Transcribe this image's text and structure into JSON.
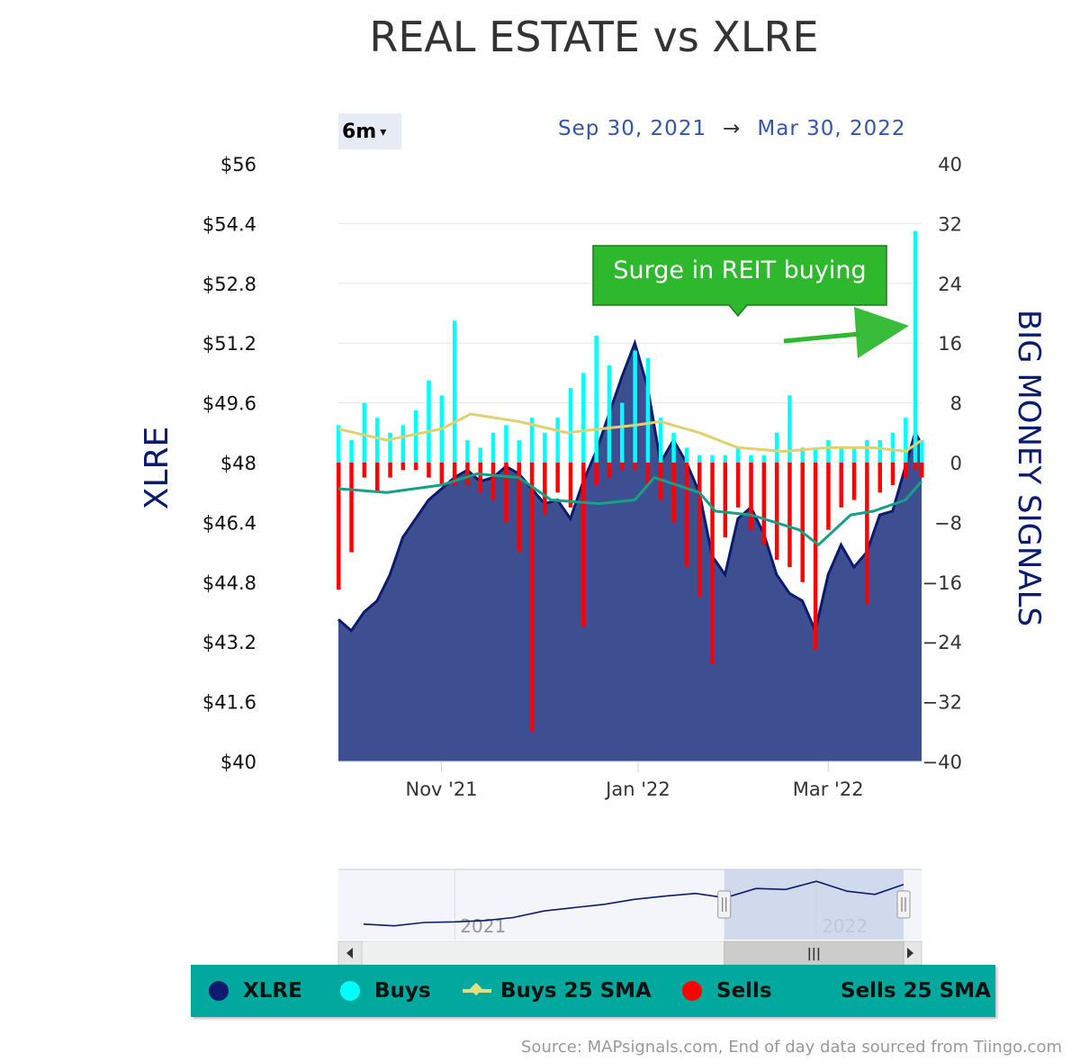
{
  "title": "REAL ESTATE vs XLRE",
  "range_selector": {
    "label": "6m",
    "caret": "▾"
  },
  "date_range": {
    "from": "Sep 30, 2021",
    "arrow": "→",
    "to": "Mar 30, 2022"
  },
  "annotation": {
    "text": "Surge in REIT buying"
  },
  "legend": {
    "items": [
      {
        "label": "XLRE",
        "color": "#0d1b6e"
      },
      {
        "label": "Buys",
        "color": "#00ffff"
      },
      {
        "label": "Buys 25 SMA",
        "color": "#e0e080"
      },
      {
        "label": "Sells",
        "color": "#ff0000"
      },
      {
        "label": "Sells 25 SMA",
        "color": "#16a085"
      }
    ]
  },
  "source": "Source: MAPsignals.com, End of day data sourced from Tiingo.com",
  "navigator": {
    "labels": [
      "2021",
      "2022"
    ],
    "handle_glyph": "|||"
  },
  "colors": {
    "xlre_fill": "#3e4f91",
    "xlre_line": "#0d1b6e",
    "buys": "#00ffff",
    "sells": "#ff0000",
    "buys_sma": "#e0d070",
    "sells_sma": "#16a085",
    "navigator_line": "#0d1b6e",
    "navigator_mask": "#c8d2e8"
  },
  "chart_data": {
    "type": "bar+area",
    "title": "REAL ESTATE vs XLRE",
    "x_range": [
      "2021-09-30",
      "2022-03-30"
    ],
    "x_ticks": [
      "Nov '21",
      "Jan '22",
      "Mar '22"
    ],
    "left_axis": {
      "label": "XLRE",
      "min": 40,
      "max": 56,
      "ticks": [
        "$56",
        "$54.4",
        "$52.8",
        "$51.2",
        "$49.6",
        "$48",
        "$46.4",
        "$44.8",
        "$43.2",
        "$41.6",
        "$40"
      ]
    },
    "right_axis": {
      "label": "BIG MONEY SIGNALS",
      "min": -40,
      "max": 40,
      "ticks": [
        "40",
        "32",
        "24",
        "16",
        "8",
        "0",
        "−8",
        "−16",
        "−24",
        "−32",
        "−40"
      ]
    },
    "xlre": [
      {
        "x": "2021-09-30",
        "y": 43.8
      },
      {
        "x": "2021-10-04",
        "y": 43.5
      },
      {
        "x": "2021-10-08",
        "y": 44.0
      },
      {
        "x": "2021-10-12",
        "y": 44.3
      },
      {
        "x": "2021-10-16",
        "y": 45.0
      },
      {
        "x": "2021-10-20",
        "y": 46.0
      },
      {
        "x": "2021-10-24",
        "y": 46.5
      },
      {
        "x": "2021-10-28",
        "y": 47.0
      },
      {
        "x": "2021-11-01",
        "y": 47.3
      },
      {
        "x": "2021-11-05",
        "y": 47.6
      },
      {
        "x": "2021-11-09",
        "y": 47.8
      },
      {
        "x": "2021-11-13",
        "y": 47.5
      },
      {
        "x": "2021-11-17",
        "y": 47.6
      },
      {
        "x": "2021-11-21",
        "y": 47.9
      },
      {
        "x": "2021-11-25",
        "y": 47.7
      },
      {
        "x": "2021-11-29",
        "y": 47.3
      },
      {
        "x": "2021-12-03",
        "y": 46.9
      },
      {
        "x": "2021-12-07",
        "y": 47.0
      },
      {
        "x": "2021-12-11",
        "y": 46.5
      },
      {
        "x": "2021-12-15",
        "y": 47.5
      },
      {
        "x": "2021-12-19",
        "y": 48.3
      },
      {
        "x": "2021-12-23",
        "y": 49.3
      },
      {
        "x": "2021-12-27",
        "y": 50.3
      },
      {
        "x": "2021-12-31",
        "y": 51.2
      },
      {
        "x": "2022-01-04",
        "y": 50.0
      },
      {
        "x": "2022-01-08",
        "y": 48.0
      },
      {
        "x": "2022-01-12",
        "y": 48.6
      },
      {
        "x": "2022-01-16",
        "y": 48.0
      },
      {
        "x": "2022-01-20",
        "y": 47.2
      },
      {
        "x": "2022-01-24",
        "y": 45.5
      },
      {
        "x": "2022-01-28",
        "y": 45.0
      },
      {
        "x": "2022-02-01",
        "y": 46.5
      },
      {
        "x": "2022-02-05",
        "y": 46.8
      },
      {
        "x": "2022-02-09",
        "y": 46.1
      },
      {
        "x": "2022-02-13",
        "y": 45.0
      },
      {
        "x": "2022-02-17",
        "y": 44.5
      },
      {
        "x": "2022-02-21",
        "y": 44.3
      },
      {
        "x": "2022-02-25",
        "y": 43.5
      },
      {
        "x": "2022-03-01",
        "y": 45.0
      },
      {
        "x": "2022-03-05",
        "y": 45.8
      },
      {
        "x": "2022-03-09",
        "y": 45.2
      },
      {
        "x": "2022-03-13",
        "y": 45.6
      },
      {
        "x": "2022-03-17",
        "y": 46.6
      },
      {
        "x": "2022-03-21",
        "y": 46.7
      },
      {
        "x": "2022-03-25",
        "y": 47.9
      },
      {
        "x": "2022-03-28",
        "y": 48.8
      },
      {
        "x": "2022-03-30",
        "y": 48.5
      }
    ],
    "buys": [
      {
        "x": "2021-09-30",
        "y": 5
      },
      {
        "x": "2021-10-04",
        "y": 3
      },
      {
        "x": "2021-10-08",
        "y": 8
      },
      {
        "x": "2021-10-12",
        "y": 6
      },
      {
        "x": "2021-10-16",
        "y": 4
      },
      {
        "x": "2021-10-20",
        "y": 5
      },
      {
        "x": "2021-10-24",
        "y": 7
      },
      {
        "x": "2021-10-28",
        "y": 11
      },
      {
        "x": "2021-11-01",
        "y": 9
      },
      {
        "x": "2021-11-05",
        "y": 19
      },
      {
        "x": "2021-11-09",
        "y": 3
      },
      {
        "x": "2021-11-13",
        "y": 2
      },
      {
        "x": "2021-11-17",
        "y": 4
      },
      {
        "x": "2021-11-21",
        "y": 5
      },
      {
        "x": "2021-11-25",
        "y": 3
      },
      {
        "x": "2021-11-29",
        "y": 6
      },
      {
        "x": "2021-12-03",
        "y": 4
      },
      {
        "x": "2021-12-07",
        "y": 6
      },
      {
        "x": "2021-12-11",
        "y": 10
      },
      {
        "x": "2021-12-15",
        "y": 12
      },
      {
        "x": "2021-12-19",
        "y": 17
      },
      {
        "x": "2021-12-23",
        "y": 13
      },
      {
        "x": "2021-12-27",
        "y": 8
      },
      {
        "x": "2021-12-31",
        "y": 15
      },
      {
        "x": "2022-01-04",
        "y": 14
      },
      {
        "x": "2022-01-08",
        "y": 6
      },
      {
        "x": "2022-01-12",
        "y": 4
      },
      {
        "x": "2022-01-16",
        "y": 2
      },
      {
        "x": "2022-01-20",
        "y": 1
      },
      {
        "x": "2022-01-24",
        "y": 1
      },
      {
        "x": "2022-01-28",
        "y": 1
      },
      {
        "x": "2022-02-01",
        "y": 2
      },
      {
        "x": "2022-02-05",
        "y": 1
      },
      {
        "x": "2022-02-09",
        "y": 1
      },
      {
        "x": "2022-02-13",
        "y": 4
      },
      {
        "x": "2022-02-17",
        "y": 9
      },
      {
        "x": "2022-02-21",
        "y": 2
      },
      {
        "x": "2022-02-25",
        "y": 2
      },
      {
        "x": "2022-03-01",
        "y": 3
      },
      {
        "x": "2022-03-05",
        "y": 2
      },
      {
        "x": "2022-03-09",
        "y": 2
      },
      {
        "x": "2022-03-13",
        "y": 3
      },
      {
        "x": "2022-03-17",
        "y": 3
      },
      {
        "x": "2022-03-21",
        "y": 4
      },
      {
        "x": "2022-03-25",
        "y": 6
      },
      {
        "x": "2022-03-28",
        "y": 31
      },
      {
        "x": "2022-03-30",
        "y": 3
      }
    ],
    "sells": [
      {
        "x": "2021-09-30",
        "y": -17
      },
      {
        "x": "2021-10-04",
        "y": -12
      },
      {
        "x": "2021-10-08",
        "y": -2
      },
      {
        "x": "2021-10-12",
        "y": -4
      },
      {
        "x": "2021-10-16",
        "y": -2
      },
      {
        "x": "2021-10-20",
        "y": -1
      },
      {
        "x": "2021-10-24",
        "y": -1
      },
      {
        "x": "2021-10-28",
        "y": -2
      },
      {
        "x": "2021-11-01",
        "y": -3
      },
      {
        "x": "2021-11-05",
        "y": -3
      },
      {
        "x": "2021-11-09",
        "y": -3
      },
      {
        "x": "2021-11-13",
        "y": -4
      },
      {
        "x": "2021-11-17",
        "y": -5
      },
      {
        "x": "2021-11-21",
        "y": -8
      },
      {
        "x": "2021-11-25",
        "y": -12
      },
      {
        "x": "2021-11-29",
        "y": -36
      },
      {
        "x": "2021-12-03",
        "y": -7
      },
      {
        "x": "2021-12-07",
        "y": -4
      },
      {
        "x": "2021-12-11",
        "y": -6
      },
      {
        "x": "2021-12-15",
        "y": -22
      },
      {
        "x": "2021-12-19",
        "y": -3
      },
      {
        "x": "2021-12-23",
        "y": -2
      },
      {
        "x": "2021-12-27",
        "y": -1
      },
      {
        "x": "2021-12-31",
        "y": -1
      },
      {
        "x": "2022-01-04",
        "y": -3
      },
      {
        "x": "2022-01-08",
        "y": -5
      },
      {
        "x": "2022-01-12",
        "y": -8
      },
      {
        "x": "2022-01-16",
        "y": -14
      },
      {
        "x": "2022-01-20",
        "y": -18
      },
      {
        "x": "2022-01-24",
        "y": -27
      },
      {
        "x": "2022-01-28",
        "y": -10
      },
      {
        "x": "2022-02-01",
        "y": -6
      },
      {
        "x": "2022-02-05",
        "y": -9
      },
      {
        "x": "2022-02-09",
        "y": -11
      },
      {
        "x": "2022-02-13",
        "y": -13
      },
      {
        "x": "2022-02-17",
        "y": -14
      },
      {
        "x": "2022-02-21",
        "y": -16
      },
      {
        "x": "2022-02-25",
        "y": -25
      },
      {
        "x": "2022-03-01",
        "y": -9
      },
      {
        "x": "2022-03-05",
        "y": -6
      },
      {
        "x": "2022-03-09",
        "y": -5
      },
      {
        "x": "2022-03-13",
        "y": -19
      },
      {
        "x": "2022-03-17",
        "y": -4
      },
      {
        "x": "2022-03-21",
        "y": -3
      },
      {
        "x": "2022-03-25",
        "y": -2
      },
      {
        "x": "2022-03-28",
        "y": -1
      },
      {
        "x": "2022-03-30",
        "y": -2
      }
    ],
    "buys_sma": [
      {
        "x": "2021-09-30",
        "y": 4.5
      },
      {
        "x": "2021-10-15",
        "y": 3.0
      },
      {
        "x": "2021-11-01",
        "y": 4.5
      },
      {
        "x": "2021-11-10",
        "y": 6.5
      },
      {
        "x": "2021-11-25",
        "y": 5.5
      },
      {
        "x": "2021-12-10",
        "y": 4.0
      },
      {
        "x": "2021-12-20",
        "y": 4.5
      },
      {
        "x": "2021-12-31",
        "y": 5.0
      },
      {
        "x": "2022-01-08",
        "y": 5.5
      },
      {
        "x": "2022-01-20",
        "y": 4.0
      },
      {
        "x": "2022-02-01",
        "y": 2.0
      },
      {
        "x": "2022-02-15",
        "y": 1.5
      },
      {
        "x": "2022-03-01",
        "y": 2.0
      },
      {
        "x": "2022-03-15",
        "y": 2.0
      },
      {
        "x": "2022-03-25",
        "y": 1.5
      },
      {
        "x": "2022-03-30",
        "y": 3.0
      }
    ],
    "sells_sma": [
      {
        "x": "2021-09-30",
        "y": -3.5
      },
      {
        "x": "2021-10-15",
        "y": -4.0
      },
      {
        "x": "2021-11-01",
        "y": -3.0
      },
      {
        "x": "2021-11-12",
        "y": -1.5
      },
      {
        "x": "2021-11-25",
        "y": -2.0
      },
      {
        "x": "2021-12-05",
        "y": -5.0
      },
      {
        "x": "2021-12-20",
        "y": -5.5
      },
      {
        "x": "2021-12-31",
        "y": -5.0
      },
      {
        "x": "2022-01-06",
        "y": -2.0
      },
      {
        "x": "2022-01-20",
        "y": -4.0
      },
      {
        "x": "2022-01-25",
        "y": -6.5
      },
      {
        "x": "2022-02-05",
        "y": -7.0
      },
      {
        "x": "2022-02-20",
        "y": -9.0
      },
      {
        "x": "2022-02-26",
        "y": -11.0
      },
      {
        "x": "2022-03-08",
        "y": -7.0
      },
      {
        "x": "2022-03-15",
        "y": -6.5
      },
      {
        "x": "2022-03-25",
        "y": -5.0
      },
      {
        "x": "2022-03-30",
        "y": -2.5
      }
    ],
    "navigator_series": [
      {
        "x": "2020-10-01",
        "y": 36.5
      },
      {
        "x": "2020-11-01",
        "y": 36.0
      },
      {
        "x": "2020-12-01",
        "y": 37.0
      },
      {
        "x": "2021-01-01",
        "y": 37.2
      },
      {
        "x": "2021-02-01",
        "y": 37.6
      },
      {
        "x": "2021-03-01",
        "y": 38.5
      },
      {
        "x": "2021-04-01",
        "y": 40.5
      },
      {
        "x": "2021-05-01",
        "y": 41.5
      },
      {
        "x": "2021-06-01",
        "y": 42.5
      },
      {
        "x": "2021-07-01",
        "y": 44.0
      },
      {
        "x": "2021-08-01",
        "y": 45.0
      },
      {
        "x": "2021-09-01",
        "y": 45.8
      },
      {
        "x": "2021-10-01",
        "y": 44.5
      },
      {
        "x": "2021-11-01",
        "y": 47.3
      },
      {
        "x": "2021-12-01",
        "y": 47.0
      },
      {
        "x": "2022-01-01",
        "y": 49.5
      },
      {
        "x": "2022-02-01",
        "y": 46.5
      },
      {
        "x": "2022-03-01",
        "y": 45.5
      },
      {
        "x": "2022-03-30",
        "y": 48.5
      }
    ],
    "navigator_window": [
      "2021-09-30",
      "2022-03-30"
    ],
    "grid": true
  }
}
